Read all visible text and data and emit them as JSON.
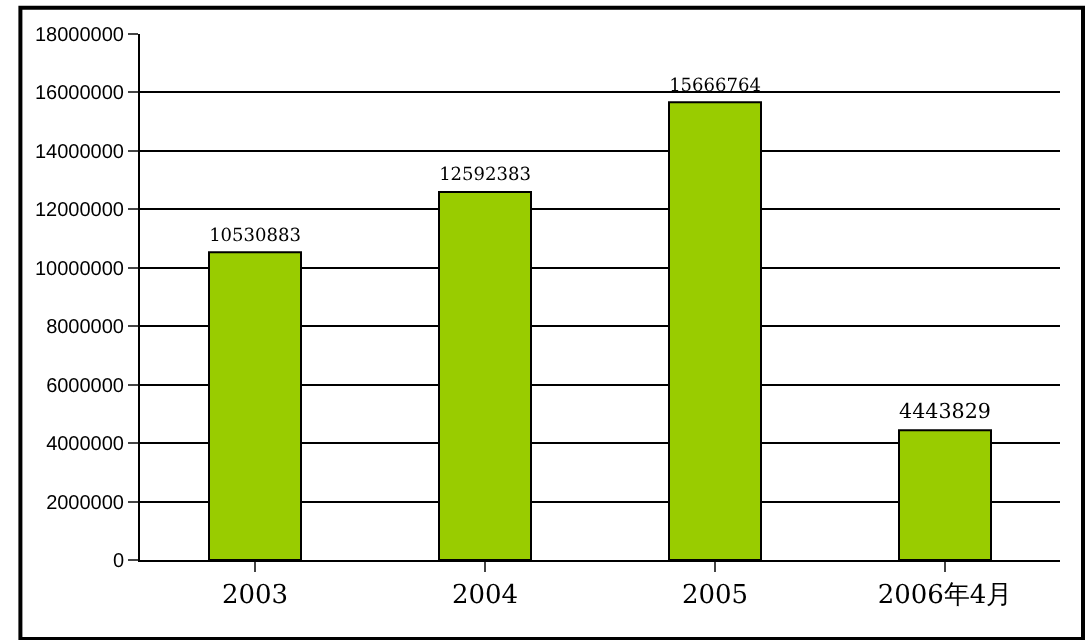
{
  "chart_data": {
    "type": "bar",
    "categories": [
      "2003",
      "2004",
      "2005",
      "2006年4月"
    ],
    "values": [
      10530883,
      12592383,
      15666764,
      4443829
    ],
    "color": "#99cc00",
    "ylim": [
      0,
      18000000
    ],
    "yticks": [
      0,
      2000000,
      4000000,
      6000000,
      8000000,
      10000000,
      12000000,
      14000000,
      16000000,
      18000000
    ],
    "grid": "y",
    "data_labels": true
  }
}
